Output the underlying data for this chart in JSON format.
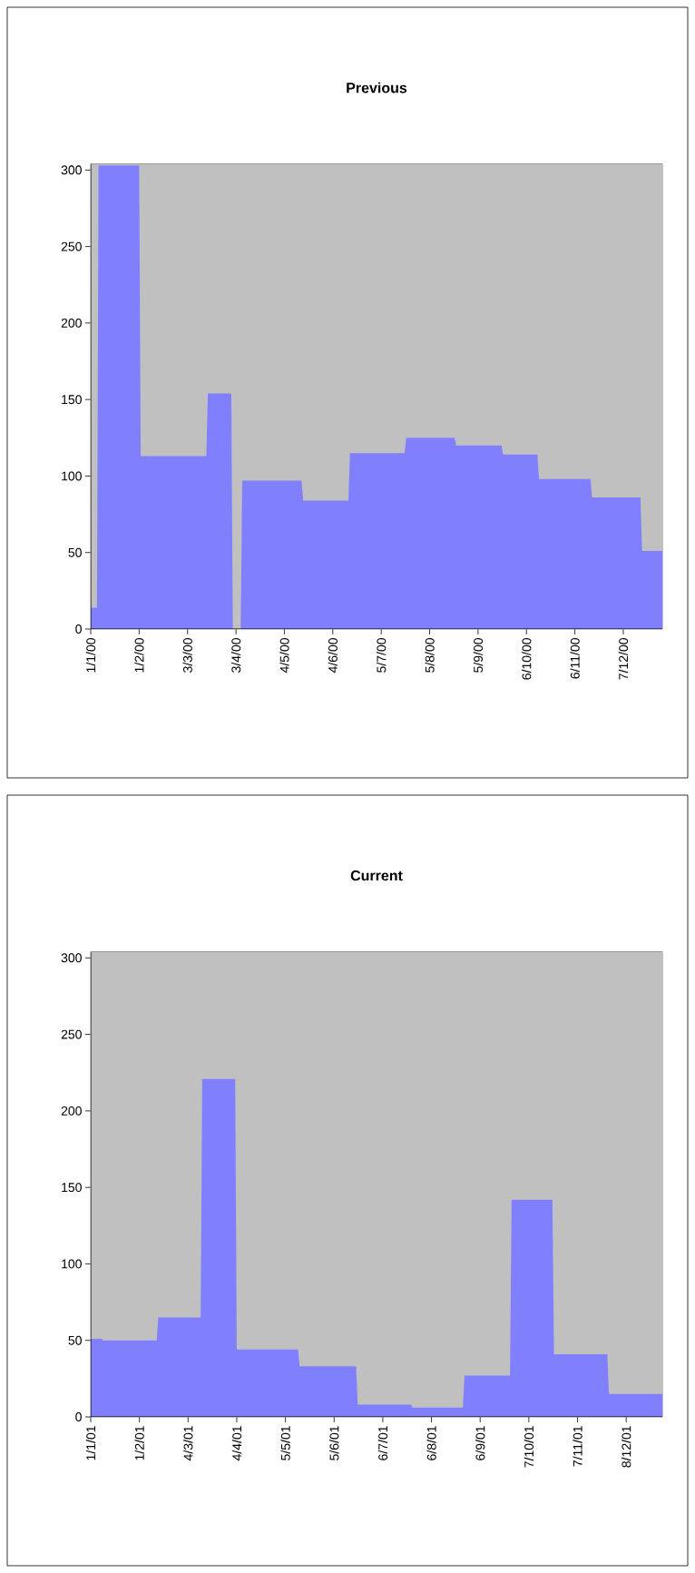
{
  "chart_data": [
    {
      "type": "area",
      "title": "Previous",
      "color": "#8080ff",
      "x": [
        "2000-01-01",
        "2000-01-05",
        "2000-01-06",
        "2000-02-01",
        "2000-02-02",
        "2000-03-15",
        "2000-03-16",
        "2000-03-31",
        "2000-04-01",
        "2000-04-06",
        "2000-04-07",
        "2000-05-15",
        "2000-05-16",
        "2000-06-14",
        "2000-06-15",
        "2000-07-20",
        "2000-07-21",
        "2000-08-21",
        "2000-08-22",
        "2000-09-20",
        "2000-09-21",
        "2000-10-13",
        "2000-10-14",
        "2000-11-16",
        "2000-11-17",
        "2000-12-18",
        "2000-12-19",
        "2001-01-01"
      ],
      "values": [
        14,
        14,
        303,
        303,
        113,
        113,
        154,
        154,
        0,
        0,
        97,
        97,
        84,
        84,
        115,
        115,
        125,
        125,
        120,
        120,
        114,
        114,
        98,
        98,
        86,
        86,
        51,
        51
      ],
      "xlim": [
        "2000-01-01",
        "2001-01-01"
      ],
      "ylim": [
        0,
        304
      ],
      "yticks": [
        0,
        50,
        100,
        150,
        200,
        250,
        300
      ],
      "xticks": [
        {
          "value": "2000-01-01",
          "label": "1/1/00"
        },
        {
          "value": "2000-02-01",
          "label": "1/2/00"
        },
        {
          "value": "2000-03-03",
          "label": "3/3/00"
        },
        {
          "value": "2000-04-03",
          "label": "3/4/00"
        },
        {
          "value": "2000-05-04",
          "label": "4/5/00"
        },
        {
          "value": "2000-06-04",
          "label": "4/6/00"
        },
        {
          "value": "2000-07-05",
          "label": "5/7/00"
        },
        {
          "value": "2000-08-05",
          "label": "5/8/00"
        },
        {
          "value": "2000-09-05",
          "label": "5/9/00"
        },
        {
          "value": "2000-10-06",
          "label": "6/10/00"
        },
        {
          "value": "2000-11-06",
          "label": "6/11/00"
        },
        {
          "value": "2000-12-07",
          "label": "7/12/00"
        }
      ]
    },
    {
      "type": "area",
      "title": "Current",
      "color": "#8080ff",
      "x": [
        "2001-01-01",
        "2001-01-08",
        "2001-01-09",
        "2001-02-12",
        "2001-02-13",
        "2001-03-12",
        "2001-03-13",
        "2001-04-03",
        "2001-04-04",
        "2001-05-13",
        "2001-05-14",
        "2001-06-19",
        "2001-06-20",
        "2001-07-24",
        "2001-07-25",
        "2001-08-26",
        "2001-08-27",
        "2001-09-25",
        "2001-09-26",
        "2001-10-22",
        "2001-10-23",
        "2001-11-26",
        "2001-11-27",
        "2001-12-31"
      ],
      "values": [
        51,
        51,
        50,
        50,
        65,
        65,
        221,
        221,
        44,
        44,
        33,
        33,
        8,
        8,
        6,
        6,
        27,
        27,
        142,
        142,
        41,
        41,
        15,
        15
      ],
      "xlim": [
        "2001-01-01",
        "2001-12-31"
      ],
      "ylim": [
        0,
        304
      ],
      "yticks": [
        0,
        50,
        100,
        150,
        200,
        250,
        300
      ],
      "xticks": [
        {
          "value": "2001-01-01",
          "label": "1/1/01"
        },
        {
          "value": "2001-02-01",
          "label": "1/2/01"
        },
        {
          "value": "2001-03-04",
          "label": "4/3/01"
        },
        {
          "value": "2001-04-04",
          "label": "4/4/01"
        },
        {
          "value": "2001-05-05",
          "label": "5/5/01"
        },
        {
          "value": "2001-06-05",
          "label": "5/6/01"
        },
        {
          "value": "2001-07-06",
          "label": "6/7/01"
        },
        {
          "value": "2001-08-06",
          "label": "6/8/01"
        },
        {
          "value": "2001-09-06",
          "label": "6/9/01"
        },
        {
          "value": "2001-10-07",
          "label": "7/10/01"
        },
        {
          "value": "2001-11-07",
          "label": "7/11/01"
        },
        {
          "value": "2001-12-08",
          "label": "8/12/01"
        }
      ]
    }
  ]
}
